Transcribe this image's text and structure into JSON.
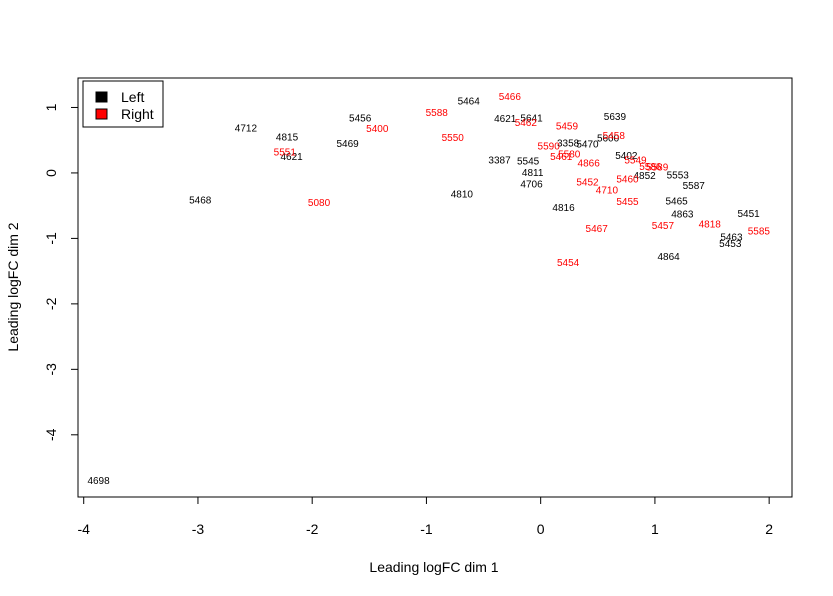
{
  "chart_data": {
    "type": "scatter",
    "title": "",
    "xlabel": "Leading logFC dim 1",
    "ylabel": "Leading logFC dim 2",
    "xlim": [
      -4.05,
      2.2
    ],
    "ylim": [
      -4.95,
      1.45
    ],
    "xticks": [
      "-4",
      "-3",
      "-2",
      "-1",
      "0",
      "1",
      "2"
    ],
    "xtick_values": [
      -4,
      -3,
      -2,
      -1,
      0,
      1,
      2
    ],
    "yticks": [
      "-4",
      "-3",
      "-2",
      "-1",
      "0",
      "1"
    ],
    "ytick_values": [
      -4,
      -3,
      -2,
      -1,
      0,
      1
    ],
    "grid": false,
    "legend_position": "top-left",
    "series": [
      {
        "name": "Left",
        "color": "#000000",
        "points": [
          {
            "label": "4698",
            "x": -3.87,
            "y": -4.7
          },
          {
            "label": "5468",
            "x": -2.98,
            "y": -0.41
          },
          {
            "label": "4712",
            "x": -2.58,
            "y": 0.69
          },
          {
            "label": "4815",
            "x": -2.22,
            "y": 0.55
          },
          {
            "label": "4621",
            "x": -2.18,
            "y": 0.25
          },
          {
            "label": "5456",
            "x": -1.58,
            "y": 0.84
          },
          {
            "label": "5469",
            "x": -1.69,
            "y": 0.45
          },
          {
            "label": "5464",
            "x": -0.63,
            "y": 1.1
          },
          {
            "label": "4810",
            "x": -0.69,
            "y": -0.32
          },
          {
            "label": "4621",
            "x": -0.31,
            "y": 0.83
          },
          {
            "label": "5641",
            "x": -0.08,
            "y": 0.84
          },
          {
            "label": "3387",
            "x": -0.36,
            "y": 0.2
          },
          {
            "label": "5545",
            "x": -0.11,
            "y": 0.18
          },
          {
            "label": "4811",
            "x": -0.07,
            "y": 0.01
          },
          {
            "label": "4706",
            "x": -0.08,
            "y": -0.17
          },
          {
            "label": "3358",
            "x": 0.24,
            "y": 0.46
          },
          {
            "label": "5470",
            "x": 0.41,
            "y": 0.44
          },
          {
            "label": "5639",
            "x": 0.65,
            "y": 0.86
          },
          {
            "label": "5600",
            "x": 0.59,
            "y": 0.53
          },
          {
            "label": "5402",
            "x": 0.75,
            "y": 0.27
          },
          {
            "label": "4816",
            "x": 0.2,
            "y": -0.53
          },
          {
            "label": "4852",
            "x": 0.91,
            "y": -0.04
          },
          {
            "label": "5553",
            "x": 1.2,
            "y": -0.03
          },
          {
            "label": "5587",
            "x": 1.34,
            "y": -0.19
          },
          {
            "label": "5465",
            "x": 1.19,
            "y": -0.43
          },
          {
            "label": "4863",
            "x": 1.24,
            "y": -0.63
          },
          {
            "label": "5451",
            "x": 1.82,
            "y": -0.62
          },
          {
            "label": "5463",
            "x": 1.67,
            "y": -0.98
          },
          {
            "label": "5453",
            "x": 1.66,
            "y": -1.08
          },
          {
            "label": "4864",
            "x": 1.12,
            "y": -1.28
          }
        ]
      },
      {
        "name": "Right",
        "color": "#ff0000",
        "points": [
          {
            "label": "5466",
            "x": -0.27,
            "y": 1.17
          },
          {
            "label": "5588",
            "x": -0.91,
            "y": 0.92
          },
          {
            "label": "5400",
            "x": -1.43,
            "y": 0.68
          },
          {
            "label": "5550",
            "x": -0.77,
            "y": 0.54
          },
          {
            "label": "5551",
            "x": -2.24,
            "y": 0.32
          },
          {
            "label": "5080",
            "x": -1.94,
            "y": -0.45
          },
          {
            "label": "5462",
            "x": -0.13,
            "y": 0.77
          },
          {
            "label": "5459",
            "x": 0.23,
            "y": 0.72
          },
          {
            "label": "5458",
            "x": 0.64,
            "y": 0.57
          },
          {
            "label": "5590",
            "x": 0.07,
            "y": 0.41
          },
          {
            "label": "5580",
            "x": 0.25,
            "y": 0.29
          },
          {
            "label": "5461",
            "x": 0.18,
            "y": 0.25
          },
          {
            "label": "4866",
            "x": 0.42,
            "y": 0.15
          },
          {
            "label": "5549",
            "x": 0.83,
            "y": 0.2
          },
          {
            "label": "5586",
            "x": 0.96,
            "y": 0.1
          },
          {
            "label": "5589",
            "x": 1.02,
            "y": 0.09
          },
          {
            "label": "5460",
            "x": 0.76,
            "y": -0.09
          },
          {
            "label": "5452",
            "x": 0.41,
            "y": -0.14
          },
          {
            "label": "4710",
            "x": 0.58,
            "y": -0.26
          },
          {
            "label": "5455",
            "x": 0.76,
            "y": -0.44
          },
          {
            "label": "5467",
            "x": 0.49,
            "y": -0.85
          },
          {
            "label": "5457",
            "x": 1.07,
            "y": -0.8
          },
          {
            "label": "4818",
            "x": 1.48,
            "y": -0.78
          },
          {
            "label": "5585",
            "x": 1.91,
            "y": -0.89
          },
          {
            "label": "5454",
            "x": 0.24,
            "y": -1.37
          }
        ]
      }
    ]
  }
}
